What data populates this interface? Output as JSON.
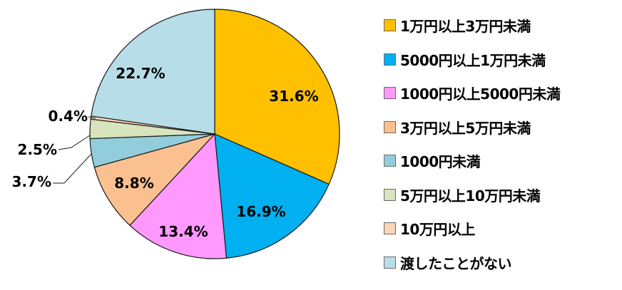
{
  "chart_data": {
    "type": "pie",
    "title": "",
    "slices": [
      {
        "label": "1万円以上3万円未満",
        "value": 31.6,
        "value_label": "31.6%",
        "color": "#FFC000"
      },
      {
        "label": "5000円以上1万円未満",
        "value": 16.9,
        "value_label": "16.9%",
        "color": "#00B0F0"
      },
      {
        "label": "1000円以上5000円未満",
        "value": 13.4,
        "value_label": "13.4%",
        "color": "#FF99FF"
      },
      {
        "label": "3万円以上5万円未満",
        "value": 8.8,
        "value_label": "8.8%",
        "color": "#FAC090"
      },
      {
        "label": "1000円未満",
        "value": 3.7,
        "value_label": "3.7%",
        "color": "#92CDDC"
      },
      {
        "label": "5万円以上10万円未満",
        "value": 2.5,
        "value_label": "2.5%",
        "color": "#D7E4BD"
      },
      {
        "label": "10万円以上",
        "value": 0.4,
        "value_label": "0.4%",
        "color": "#FCD5B5"
      },
      {
        "label": "渡したことがない",
        "value": 22.7,
        "value_label": "22.7%",
        "color": "#B7DEE8"
      }
    ],
    "legend_position": "right",
    "start_angle": "12 o'clock",
    "direction": "clockwise"
  }
}
